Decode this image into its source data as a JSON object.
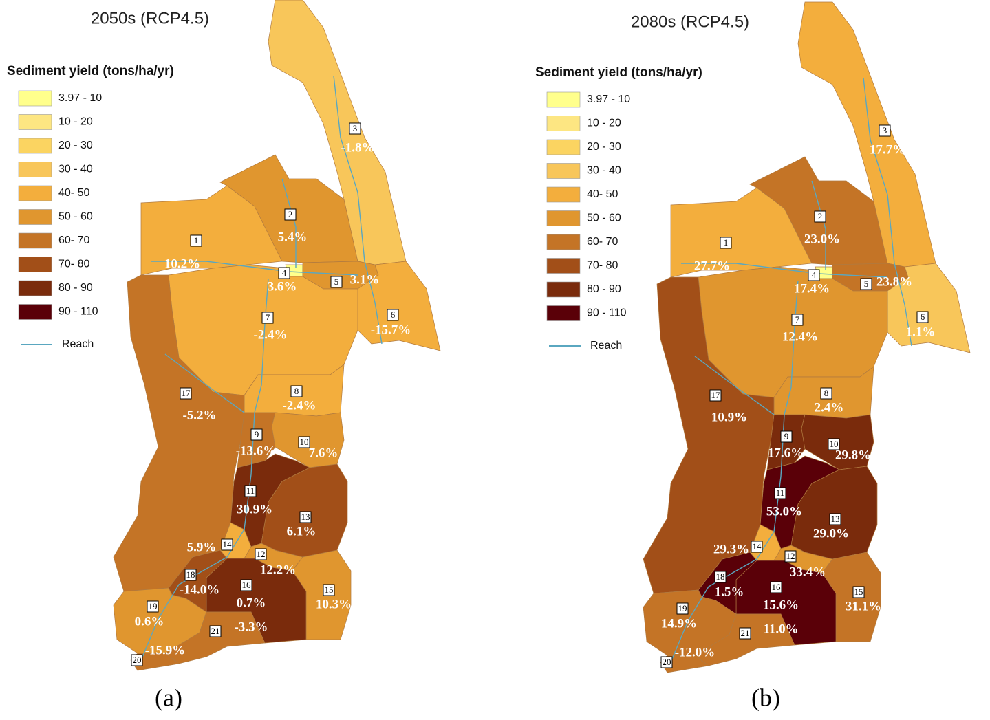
{
  "panels": [
    {
      "title": "2050s (RCP4.5)",
      "legend_title": "Sediment yield (tons/ha/yr)",
      "legend": [
        {
          "label": "3.97 - 10",
          "color": "#ffff8c"
        },
        {
          "label": "10 - 20",
          "color": "#fde682"
        },
        {
          "label": "20 - 30",
          "color": "#fbd461"
        },
        {
          "label": "30 - 40",
          "color": "#f8c65a"
        },
        {
          "label": "40- 50",
          "color": "#f3ae3d"
        },
        {
          "label": "50 - 60",
          "color": "#e0962f"
        },
        {
          "label": "60- 70",
          "color": "#c47426"
        },
        {
          "label": "70- 80",
          "color": "#a24f18"
        },
        {
          "label": "80 - 90",
          "color": "#7a2b0c"
        },
        {
          "label": "90 - 110",
          "color": "#5a0008"
        }
      ],
      "reach_label": "Reach",
      "reach_color": "#5aa7c0",
      "subbasins": [
        {
          "id": 1,
          "change": "10.2%",
          "color": "#f3ae3d"
        },
        {
          "id": 2,
          "change": "5.4%",
          "color": "#e0962f"
        },
        {
          "id": 3,
          "change": "-1.8%",
          "color": "#f8c65a"
        },
        {
          "id": 4,
          "change": "3.6%",
          "color": "#ffff8c"
        },
        {
          "id": 5,
          "change": "3.1%",
          "color": "#e0962f"
        },
        {
          "id": 6,
          "change": "-15.7%",
          "color": "#f3ae3d"
        },
        {
          "id": 7,
          "change": "-2.4%",
          "color": "#f3ae3d"
        },
        {
          "id": 8,
          "change": "-2.4%",
          "color": "#f3ae3d"
        },
        {
          "id": 9,
          "change": "-13.6%",
          "color": "#c47426"
        },
        {
          "id": 10,
          "change": "7.6%",
          "color": "#e0962f"
        },
        {
          "id": 11,
          "change": "30.9%",
          "color": "#7a2b0c"
        },
        {
          "id": 12,
          "change": "12.2%",
          "color": "#e0962f"
        },
        {
          "id": 13,
          "change": "6.1%",
          "color": "#a24f18"
        },
        {
          "id": 14,
          "change": "5.9%",
          "color": "#f3ae3d"
        },
        {
          "id": 15,
          "change": "10.3%",
          "color": "#e0962f"
        },
        {
          "id": 16,
          "change": "0.7%",
          "color": "#7a2b0c"
        },
        {
          "id": 17,
          "change": "-5.2%",
          "color": "#c47426"
        },
        {
          "id": 18,
          "change": "-14.0%",
          "color": "#a24f18"
        },
        {
          "id": 19,
          "change": "0.6%",
          "color": "#e0962f"
        },
        {
          "id": 20,
          "change": "-15.9%",
          "color": "#c47426"
        },
        {
          "id": 21,
          "change": "-3.3%",
          "color": "#c47426"
        }
      ],
      "panel_label": "(a)"
    },
    {
      "title": "2080s (RCP4.5)",
      "legend_title": "Sediment yield (tons/ha/yr)",
      "legend": [
        {
          "label": "3.97 - 10",
          "color": "#ffff8c"
        },
        {
          "label": "10 - 20",
          "color": "#fde682"
        },
        {
          "label": "20 - 30",
          "color": "#fbd461"
        },
        {
          "label": "30 - 40",
          "color": "#f8c65a"
        },
        {
          "label": "40- 50",
          "color": "#f3ae3d"
        },
        {
          "label": "50 - 60",
          "color": "#e0962f"
        },
        {
          "label": "60- 70",
          "color": "#c47426"
        },
        {
          "label": "70- 80",
          "color": "#a24f18"
        },
        {
          "label": "80 - 90",
          "color": "#7a2b0c"
        },
        {
          "label": "90 - 110",
          "color": "#5a0008"
        }
      ],
      "reach_label": "Reach",
      "reach_color": "#5aa7c0",
      "subbasins": [
        {
          "id": 1,
          "change": "27.7%",
          "color": "#f3ae3d"
        },
        {
          "id": 2,
          "change": "23.0%",
          "color": "#c47426"
        },
        {
          "id": 3,
          "change": "17.7%",
          "color": "#f3ae3d"
        },
        {
          "id": 4,
          "change": "17.4%",
          "color": "#ffff8c"
        },
        {
          "id": 5,
          "change": "23.8%",
          "color": "#c47426"
        },
        {
          "id": 6,
          "change": "1.1%",
          "color": "#f8c65a"
        },
        {
          "id": 7,
          "change": "12.4%",
          "color": "#e0962f"
        },
        {
          "id": 8,
          "change": "2.4%",
          "color": "#e0962f"
        },
        {
          "id": 9,
          "change": "17.6%",
          "color": "#7a2b0c"
        },
        {
          "id": 10,
          "change": "29.8%",
          "color": "#7a2b0c"
        },
        {
          "id": 11,
          "change": "53.0%",
          "color": "#5a0008"
        },
        {
          "id": 12,
          "change": "33.4%",
          "color": "#e0962f"
        },
        {
          "id": 13,
          "change": "29.0%",
          "color": "#7a2b0c"
        },
        {
          "id": 14,
          "change": "29.3%",
          "color": "#f3ae3d"
        },
        {
          "id": 15,
          "change": "31.1%",
          "color": "#c47426"
        },
        {
          "id": 16,
          "change": "15.6%",
          "color": "#5a0008"
        },
        {
          "id": 17,
          "change": "10.9%",
          "color": "#a24f18"
        },
        {
          "id": 18,
          "change": "1.5%",
          "color": "#5a0008"
        },
        {
          "id": 19,
          "change": "14.9%",
          "color": "#c47426"
        },
        {
          "id": 20,
          "change": "-12.0%",
          "color": "#c47426"
        },
        {
          "id": 21,
          "change": "11.0%",
          "color": "#c47426"
        }
      ],
      "panel_label": "(b)"
    }
  ]
}
